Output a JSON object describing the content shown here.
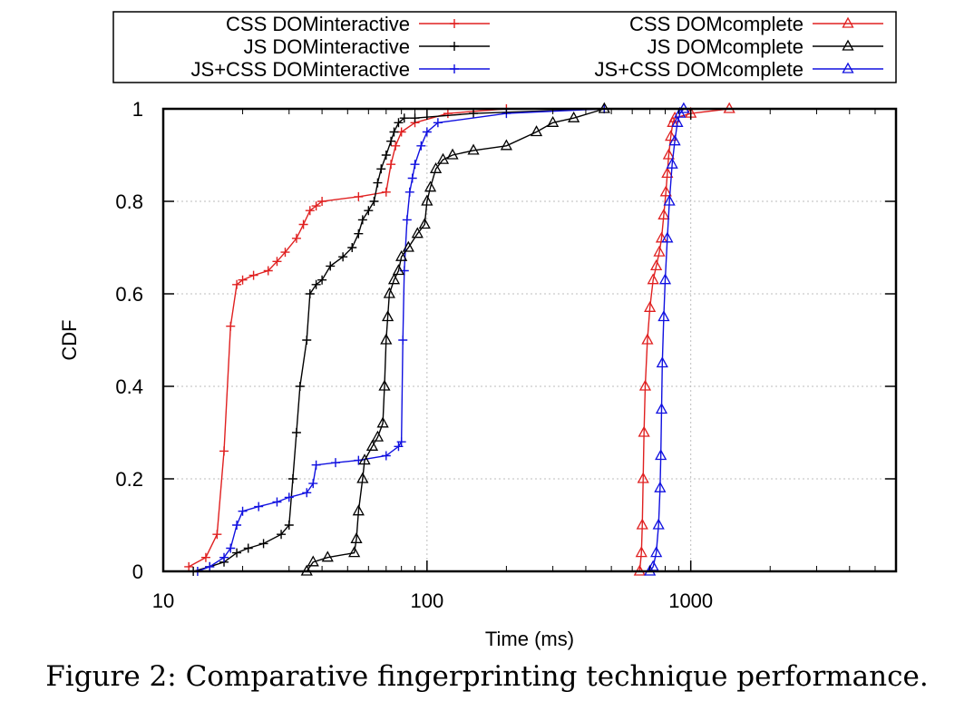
{
  "chart_data": {
    "type": "line",
    "xlabel": "Time (ms)",
    "ylabel": "CDF",
    "x_scale": "log",
    "xlim": [
      10,
      6000
    ],
    "ylim": [
      0,
      1
    ],
    "xticks": [
      10,
      100,
      1000
    ],
    "xtick_labels": [
      "10",
      "100",
      "1000"
    ],
    "yticks": [
      0,
      0.2,
      0.4,
      0.6,
      0.8,
      1
    ],
    "ytick_labels": [
      "0",
      "0.2",
      "0.4",
      "0.6",
      "0.8",
      "1"
    ],
    "grid": true,
    "legend_position": "above plot, two columns",
    "series": [
      {
        "name": "CSS DOMinteractive",
        "color": "#e02020",
        "marker": "plus",
        "points": [
          [
            12.5,
            0.01
          ],
          [
            14.5,
            0.03
          ],
          [
            16,
            0.08
          ],
          [
            17,
            0.26
          ],
          [
            18,
            0.53
          ],
          [
            19,
            0.62
          ],
          [
            20,
            0.63
          ],
          [
            22,
            0.64
          ],
          [
            25,
            0.65
          ],
          [
            27,
            0.67
          ],
          [
            29,
            0.69
          ],
          [
            32,
            0.72
          ],
          [
            34,
            0.75
          ],
          [
            36,
            0.78
          ],
          [
            38,
            0.79
          ],
          [
            40,
            0.8
          ],
          [
            55,
            0.81
          ],
          [
            70,
            0.82
          ],
          [
            73,
            0.88
          ],
          [
            76,
            0.92
          ],
          [
            80,
            0.95
          ],
          [
            90,
            0.97
          ],
          [
            120,
            0.99
          ],
          [
            200,
            1.0
          ]
        ]
      },
      {
        "name": "JS DOMinteractive",
        "color": "#000000",
        "marker": "plus",
        "points": [
          [
            13,
            0.0
          ],
          [
            15,
            0.01
          ],
          [
            17,
            0.02
          ],
          [
            19,
            0.04
          ],
          [
            21,
            0.05
          ],
          [
            24,
            0.06
          ],
          [
            28,
            0.08
          ],
          [
            30,
            0.1
          ],
          [
            31,
            0.2
          ],
          [
            32,
            0.3
          ],
          [
            33,
            0.4
          ],
          [
            35,
            0.5
          ],
          [
            36,
            0.6
          ],
          [
            38,
            0.62
          ],
          [
            40,
            0.63
          ],
          [
            43,
            0.66
          ],
          [
            48,
            0.68
          ],
          [
            52,
            0.7
          ],
          [
            55,
            0.73
          ],
          [
            57,
            0.76
          ],
          [
            60,
            0.78
          ],
          [
            63,
            0.8
          ],
          [
            65,
            0.84
          ],
          [
            67,
            0.87
          ],
          [
            70,
            0.9
          ],
          [
            73,
            0.93
          ],
          [
            75,
            0.95
          ],
          [
            78,
            0.97
          ],
          [
            82,
            0.98
          ],
          [
            90,
            0.98
          ],
          [
            150,
            0.99
          ],
          [
            470,
            1.0
          ]
        ]
      },
      {
        "name": "JS+CSS DOMinteractive",
        "color": "#1010e0",
        "marker": "plus",
        "points": [
          [
            13.5,
            0.0
          ],
          [
            15,
            0.01
          ],
          [
            17,
            0.03
          ],
          [
            18,
            0.05
          ],
          [
            19,
            0.1
          ],
          [
            20,
            0.13
          ],
          [
            23,
            0.14
          ],
          [
            27,
            0.15
          ],
          [
            30,
            0.16
          ],
          [
            35,
            0.17
          ],
          [
            37,
            0.19
          ],
          [
            38,
            0.23
          ],
          [
            45,
            0.235
          ],
          [
            55,
            0.24
          ],
          [
            70,
            0.25
          ],
          [
            78,
            0.27
          ],
          [
            80,
            0.28
          ],
          [
            81,
            0.5
          ],
          [
            82,
            0.65
          ],
          [
            84,
            0.76
          ],
          [
            86,
            0.82
          ],
          [
            88,
            0.85
          ],
          [
            90,
            0.88
          ],
          [
            95,
            0.92
          ],
          [
            100,
            0.95
          ],
          [
            110,
            0.97
          ],
          [
            200,
            0.99
          ],
          [
            470,
            1.0
          ]
        ]
      },
      {
        "name": "CSS DOMcomplete",
        "color": "#e02020",
        "marker": "triangle",
        "points": [
          [
            640,
            0.0
          ],
          [
            650,
            0.04
          ],
          [
            655,
            0.1
          ],
          [
            660,
            0.2
          ],
          [
            665,
            0.3
          ],
          [
            672,
            0.4
          ],
          [
            685,
            0.5
          ],
          [
            700,
            0.57
          ],
          [
            720,
            0.63
          ],
          [
            740,
            0.66
          ],
          [
            760,
            0.69
          ],
          [
            775,
            0.72
          ],
          [
            790,
            0.77
          ],
          [
            805,
            0.82
          ],
          [
            815,
            0.86
          ],
          [
            825,
            0.9
          ],
          [
            840,
            0.94
          ],
          [
            855,
            0.97
          ],
          [
            870,
            0.98
          ],
          [
            1000,
            0.99
          ],
          [
            1400,
            1.0
          ]
        ]
      },
      {
        "name": "JS DOMcomplete",
        "color": "#000000",
        "marker": "triangle",
        "points": [
          [
            35,
            0.0
          ],
          [
            37,
            0.02
          ],
          [
            42,
            0.03
          ],
          [
            53,
            0.04
          ],
          [
            54,
            0.07
          ],
          [
            55,
            0.13
          ],
          [
            57,
            0.2
          ],
          [
            58,
            0.24
          ],
          [
            62,
            0.27
          ],
          [
            65,
            0.29
          ],
          [
            68,
            0.32
          ],
          [
            69,
            0.4
          ],
          [
            70,
            0.5
          ],
          [
            71,
            0.55
          ],
          [
            72,
            0.6
          ],
          [
            75,
            0.63
          ],
          [
            78,
            0.65
          ],
          [
            80,
            0.68
          ],
          [
            85,
            0.7
          ],
          [
            92,
            0.73
          ],
          [
            98,
            0.75
          ],
          [
            100,
            0.8
          ],
          [
            103,
            0.83
          ],
          [
            108,
            0.87
          ],
          [
            115,
            0.89
          ],
          [
            125,
            0.9
          ],
          [
            150,
            0.91
          ],
          [
            200,
            0.92
          ],
          [
            260,
            0.95
          ],
          [
            300,
            0.97
          ],
          [
            360,
            0.98
          ],
          [
            470,
            1.0
          ]
        ]
      },
      {
        "name": "JS+CSS DOMcomplete",
        "color": "#1010e0",
        "marker": "triangle",
        "points": [
          [
            700,
            0.0
          ],
          [
            720,
            0.01
          ],
          [
            740,
            0.04
          ],
          [
            755,
            0.1
          ],
          [
            765,
            0.18
          ],
          [
            770,
            0.25
          ],
          [
            775,
            0.35
          ],
          [
            780,
            0.45
          ],
          [
            790,
            0.55
          ],
          [
            800,
            0.63
          ],
          [
            815,
            0.72
          ],
          [
            830,
            0.8
          ],
          [
            850,
            0.88
          ],
          [
            870,
            0.93
          ],
          [
            890,
            0.97
          ],
          [
            910,
            0.99
          ],
          [
            940,
            1.0
          ]
        ]
      }
    ]
  },
  "caption": "Figure 2: Comparative fingerprinting technique performance."
}
